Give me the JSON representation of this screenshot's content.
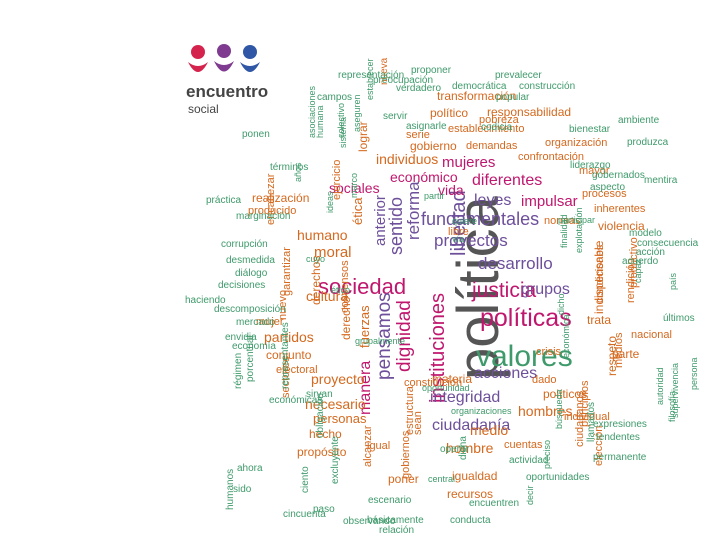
{
  "logo": {
    "name": "encuentro",
    "subtitle": "social",
    "colors": [
      "#d4244d",
      "#7e3b8f",
      "#2f57a6"
    ]
  },
  "palette": {
    "green": "#3f9a6b",
    "orange": "#d4691f",
    "purple": "#6d4f9a",
    "magenta": "#c0176e",
    "gray": "#555555"
  },
  "words": [
    {
      "t": "política",
      "c": "gray",
      "o": "v"
    },
    {
      "t": "valores",
      "c": "green",
      "o": "h"
    },
    {
      "t": "políticas",
      "c": "magenta",
      "o": "h"
    },
    {
      "t": "sociedad",
      "c": "magenta",
      "o": "h"
    },
    {
      "t": "justicia",
      "c": "magenta",
      "o": "h"
    },
    {
      "t": "fundamentales",
      "c": "purple",
      "o": "h"
    },
    {
      "t": "proyectos",
      "c": "purple",
      "o": "h"
    },
    {
      "t": "desarrollo",
      "c": "purple",
      "o": "h"
    },
    {
      "t": "instituciones",
      "c": "magenta",
      "o": "v"
    },
    {
      "t": "libertad",
      "c": "purple",
      "o": "v"
    },
    {
      "t": "dignidad",
      "c": "magenta",
      "o": "v"
    },
    {
      "t": "pensamos",
      "c": "purple",
      "o": "v"
    },
    {
      "t": "integridad",
      "c": "purple",
      "o": "h"
    },
    {
      "t": "acciones",
      "c": "purple",
      "o": "h"
    },
    {
      "t": "ciudadanía",
      "c": "purple",
      "o": "h"
    },
    {
      "t": "sentido",
      "c": "purple",
      "o": "v"
    },
    {
      "t": "reforma",
      "c": "purple",
      "o": "v"
    },
    {
      "t": "anterior",
      "c": "purple",
      "o": "v"
    },
    {
      "t": "manera",
      "c": "magenta",
      "o": "v"
    },
    {
      "t": "leyes",
      "c": "purple",
      "o": "h"
    },
    {
      "t": "grupos",
      "c": "purple",
      "o": "h"
    },
    {
      "t": "diferentes",
      "c": "magenta",
      "o": "h"
    },
    {
      "t": "mujeres",
      "c": "magenta",
      "o": "h"
    },
    {
      "t": "vida",
      "c": "magenta",
      "o": "h"
    },
    {
      "t": "económico",
      "c": "magenta",
      "o": "h"
    },
    {
      "t": "impulsar",
      "c": "magenta",
      "o": "h"
    },
    {
      "t": "sociales",
      "c": "magenta",
      "o": "h"
    },
    {
      "t": "moral",
      "c": "orange",
      "o": "h"
    },
    {
      "t": "humano",
      "c": "orange",
      "o": "h"
    },
    {
      "t": "cultura",
      "c": "orange",
      "o": "h"
    },
    {
      "t": "proyecto",
      "c": "orange",
      "o": "h"
    },
    {
      "t": "necesario",
      "c": "orange",
      "o": "h"
    },
    {
      "t": "personas",
      "c": "orange",
      "o": "h"
    },
    {
      "t": "partidos",
      "c": "orange",
      "o": "h"
    },
    {
      "t": "hombres",
      "c": "orange",
      "o": "h"
    },
    {
      "t": "hombre",
      "c": "orange",
      "o": "h"
    },
    {
      "t": "medio",
      "c": "orange",
      "o": "h"
    },
    {
      "t": "individuos",
      "c": "orange",
      "o": "h"
    },
    {
      "t": "realización",
      "c": "orange",
      "o": "h"
    },
    {
      "t": "fuerzas",
      "c": "orange",
      "o": "v"
    },
    {
      "t": "derecho",
      "c": "orange",
      "o": "v"
    },
    {
      "t": "derechos",
      "c": "orange",
      "o": "v"
    },
    {
      "t": "ética",
      "c": "orange",
      "o": "v"
    },
    {
      "t": "materia",
      "c": "orange",
      "o": "h"
    },
    {
      "t": "trata",
      "c": "orange",
      "o": "h"
    },
    {
      "t": "políticos",
      "c": "orange",
      "o": "h"
    },
    {
      "t": "respeto",
      "c": "orange",
      "o": "v"
    },
    {
      "t": "crisis",
      "c": "orange",
      "o": "h"
    },
    {
      "t": "dado",
      "c": "orange",
      "o": "h"
    },
    {
      "t": "individual",
      "c": "orange",
      "o": "h"
    },
    {
      "t": "propósito",
      "c": "orange",
      "o": "h"
    },
    {
      "t": "igualdad",
      "c": "orange",
      "o": "h"
    },
    {
      "t": "recursos",
      "c": "orange",
      "o": "h"
    },
    {
      "t": "poner",
      "c": "orange",
      "o": "h"
    },
    {
      "t": "hecho",
      "c": "orange",
      "o": "h"
    },
    {
      "t": "conjunto",
      "c": "orange",
      "o": "h"
    },
    {
      "t": "electoral",
      "c": "orange",
      "o": "h"
    },
    {
      "t": "gobierno",
      "c": "orange",
      "o": "h"
    },
    {
      "t": "demandas",
      "c": "orange",
      "o": "h"
    },
    {
      "t": "organización",
      "c": "orange",
      "o": "h"
    },
    {
      "t": "confrontación",
      "c": "orange",
      "o": "h"
    },
    {
      "t": "pobreza",
      "c": "orange",
      "o": "h"
    },
    {
      "t": "responsabilidad",
      "c": "orange",
      "o": "h"
    },
    {
      "t": "político",
      "c": "orange",
      "o": "h"
    },
    {
      "t": "transformación",
      "c": "orange",
      "o": "h"
    },
    {
      "t": "serie",
      "c": "orange",
      "o": "h"
    },
    {
      "t": "establecimiento",
      "c": "orange",
      "o": "h"
    },
    {
      "t": "mayor",
      "c": "orange",
      "o": "h"
    },
    {
      "t": "procesos",
      "c": "orange",
      "o": "h"
    },
    {
      "t": "violencia",
      "c": "orange",
      "o": "h"
    },
    {
      "t": "inherentes",
      "c": "orange",
      "o": "h"
    },
    {
      "t": "normas",
      "c": "orange",
      "o": "h"
    },
    {
      "t": "libre",
      "c": "orange",
      "o": "h"
    },
    {
      "t": "condiciones",
      "c": "orange",
      "o": "v"
    },
    {
      "t": "rendición",
      "c": "orange",
      "o": "v"
    },
    {
      "t": "indispensable",
      "c": "orange",
      "o": "v"
    },
    {
      "t": "productivo",
      "c": "orange",
      "o": "v"
    },
    {
      "t": "nacional",
      "c": "orange",
      "o": "h"
    },
    {
      "t": "parte",
      "c": "orange",
      "o": "h"
    },
    {
      "t": "mujer",
      "c": "orange",
      "o": "h"
    },
    {
      "t": "producido",
      "c": "orange",
      "o": "h"
    },
    {
      "t": "encabezar",
      "c": "orange",
      "o": "v"
    },
    {
      "t": "garantizar",
      "c": "orange",
      "o": "v"
    },
    {
      "t": "nuevo",
      "c": "orange",
      "o": "v"
    },
    {
      "t": "consensos",
      "c": "orange",
      "o": "v"
    },
    {
      "t": "lograr",
      "c": "orange",
      "o": "v"
    },
    {
      "t": "ejercicio",
      "c": "orange",
      "o": "v"
    },
    {
      "t": "estructura",
      "c": "orange",
      "o": "v"
    },
    {
      "t": "alcanzar",
      "c": "orange",
      "o": "v"
    },
    {
      "t": "gobiernos",
      "c": "orange",
      "o": "v"
    },
    {
      "t": "sean",
      "c": "orange",
      "o": "v"
    },
    {
      "t": "elección",
      "c": "orange",
      "o": "v"
    },
    {
      "t": "ciudadanos",
      "c": "orange",
      "o": "v"
    },
    {
      "t": "principios",
      "c": "orange",
      "o": "v"
    },
    {
      "t": "cuentas",
      "c": "orange",
      "o": "h"
    },
    {
      "t": "igual",
      "c": "orange",
      "o": "h"
    },
    {
      "t": "sectores",
      "c": "orange",
      "o": "v"
    },
    {
      "t": "constitución",
      "c": "orange",
      "o": "h"
    },
    {
      "t": "medios",
      "c": "orange",
      "o": "v"
    },
    {
      "t": "nueva",
      "c": "orange",
      "o": "v"
    },
    {
      "t": "democrática",
      "c": "green",
      "o": "h"
    },
    {
      "t": "construcción",
      "c": "green",
      "o": "h"
    },
    {
      "t": "popular",
      "c": "green",
      "o": "h"
    },
    {
      "t": "representación",
      "c": "green",
      "o": "h"
    },
    {
      "t": "proponer",
      "c": "green",
      "o": "h"
    },
    {
      "t": "prevalecer",
      "c": "green",
      "o": "h"
    },
    {
      "t": "preocupación",
      "c": "green",
      "o": "h"
    },
    {
      "t": "verdadero",
      "c": "green",
      "o": "h"
    },
    {
      "t": "campos",
      "c": "green",
      "o": "h"
    },
    {
      "t": "servir",
      "c": "green",
      "o": "h"
    },
    {
      "t": "asignarle",
      "c": "green",
      "o": "h"
    },
    {
      "t": "codicia",
      "c": "green",
      "o": "h"
    },
    {
      "t": "bienestar",
      "c": "green",
      "o": "h"
    },
    {
      "t": "ambiente",
      "c": "green",
      "o": "h"
    },
    {
      "t": "produzca",
      "c": "green",
      "o": "h"
    },
    {
      "t": "ponen",
      "c": "green",
      "o": "h"
    },
    {
      "t": "términos",
      "c": "green",
      "o": "h"
    },
    {
      "t": "liderazgo",
      "c": "green",
      "o": "h"
    },
    {
      "t": "gobernados",
      "c": "green",
      "o": "h"
    },
    {
      "t": "aspecto",
      "c": "green",
      "o": "h"
    },
    {
      "t": "mentira",
      "c": "green",
      "o": "h"
    },
    {
      "t": "práctica",
      "c": "green",
      "o": "h"
    },
    {
      "t": "marginación",
      "c": "green",
      "o": "h"
    },
    {
      "t": "corrupción",
      "c": "green",
      "o": "h"
    },
    {
      "t": "desmedida",
      "c": "green",
      "o": "h"
    },
    {
      "t": "diálogo",
      "c": "green",
      "o": "h"
    },
    {
      "t": "decisiones",
      "c": "green",
      "o": "h"
    },
    {
      "t": "haciendo",
      "c": "green",
      "o": "h"
    },
    {
      "t": "descomposición",
      "c": "green",
      "o": "h"
    },
    {
      "t": "mercado",
      "c": "green",
      "o": "h"
    },
    {
      "t": "envidia",
      "c": "green",
      "o": "h"
    },
    {
      "t": "economía",
      "c": "green",
      "o": "h"
    },
    {
      "t": "modelo",
      "c": "green",
      "o": "h"
    },
    {
      "t": "consecuencia",
      "c": "green",
      "o": "h"
    },
    {
      "t": "acción",
      "c": "green",
      "o": "h"
    },
    {
      "t": "acuerdo",
      "c": "green",
      "o": "h"
    },
    {
      "t": "últimos",
      "c": "green",
      "o": "h"
    },
    {
      "t": "partir",
      "c": "green",
      "o": "h"
    },
    {
      "t": "participar",
      "c": "green",
      "o": "h"
    },
    {
      "t": "quiere",
      "c": "green",
      "o": "h"
    },
    {
      "t": "vía",
      "c": "green",
      "o": "h"
    },
    {
      "t": "cuyo",
      "c": "green",
      "o": "h"
    },
    {
      "t": "ético",
      "c": "green",
      "o": "h"
    },
    {
      "t": "ideas",
      "c": "green",
      "o": "v"
    },
    {
      "t": "marco",
      "c": "green",
      "o": "v"
    },
    {
      "t": "años",
      "c": "green",
      "o": "v"
    },
    {
      "t": "asociaciones",
      "c": "green",
      "o": "v"
    },
    {
      "t": "humana",
      "c": "green",
      "o": "v"
    },
    {
      "t": "sistema",
      "c": "green",
      "o": "v"
    },
    {
      "t": "colectivo",
      "c": "green",
      "o": "v"
    },
    {
      "t": "aseguren",
      "c": "green",
      "o": "v"
    },
    {
      "t": "establecer",
      "c": "green",
      "o": "v"
    },
    {
      "t": "porcentual",
      "c": "green",
      "o": "v"
    },
    {
      "t": "régimen",
      "c": "green",
      "o": "v"
    },
    {
      "t": "humanos",
      "c": "green",
      "o": "v"
    },
    {
      "t": "representantes",
      "c": "green",
      "o": "v"
    },
    {
      "t": "económicas",
      "c": "green",
      "o": "h"
    },
    {
      "t": "sirvan",
      "c": "green",
      "o": "h"
    },
    {
      "t": "sido",
      "c": "green",
      "o": "h"
    },
    {
      "t": "ahora",
      "c": "green",
      "o": "h"
    },
    {
      "t": "cincuenta",
      "c": "green",
      "o": "h"
    },
    {
      "t": "obligación",
      "c": "green",
      "o": "v"
    },
    {
      "t": "excluyente",
      "c": "green",
      "o": "v"
    },
    {
      "t": "ciento",
      "c": "green",
      "o": "v"
    },
    {
      "t": "escenario",
      "c": "green",
      "o": "h"
    },
    {
      "t": "paso",
      "c": "green",
      "o": "h"
    },
    {
      "t": "observando",
      "c": "green",
      "o": "h"
    },
    {
      "t": "básicamente",
      "c": "green",
      "o": "h"
    },
    {
      "t": "conducta",
      "c": "green",
      "o": "h"
    },
    {
      "t": "relación",
      "c": "green",
      "o": "h"
    },
    {
      "t": "encuentren",
      "c": "green",
      "o": "h"
    },
    {
      "t": "oportunidades",
      "c": "green",
      "o": "h"
    },
    {
      "t": "permanente",
      "c": "green",
      "o": "h"
    },
    {
      "t": "tendentes",
      "c": "green",
      "o": "h"
    },
    {
      "t": "expresiones",
      "c": "green",
      "o": "h"
    },
    {
      "t": "operar",
      "c": "green",
      "o": "h"
    },
    {
      "t": "organizaciones",
      "c": "green",
      "o": "h"
    },
    {
      "t": "grupalmente",
      "c": "green",
      "o": "h"
    },
    {
      "t": "oportunidad",
      "c": "green",
      "o": "h"
    },
    {
      "t": "central",
      "c": "green",
      "o": "h"
    },
    {
      "t": "actividad",
      "c": "green",
      "o": "h"
    },
    {
      "t": "dicha",
      "c": "green",
      "o": "v"
    },
    {
      "t": "decir",
      "c": "green",
      "o": "v"
    },
    {
      "t": "preciso",
      "c": "green",
      "o": "v"
    },
    {
      "t": "búsqueda",
      "c": "green",
      "o": "v"
    },
    {
      "t": "económica",
      "c": "green",
      "o": "v"
    },
    {
      "t": "explotación",
      "c": "green",
      "o": "v"
    },
    {
      "t": "finalidad",
      "c": "green",
      "o": "v"
    },
    {
      "t": "dicho",
      "c": "green",
      "o": "v"
    },
    {
      "t": "llamados",
      "c": "green",
      "o": "v"
    },
    {
      "t": "capaz",
      "c": "green",
      "o": "v"
    },
    {
      "t": "país",
      "c": "green",
      "o": "v"
    },
    {
      "t": "autoridad",
      "c": "green",
      "o": "v"
    },
    {
      "t": "filosofía",
      "c": "green",
      "o": "v"
    },
    {
      "t": "supervivencia",
      "c": "green",
      "o": "v"
    },
    {
      "t": "persona",
      "c": "green",
      "o": "v"
    },
    {
      "t": "importante",
      "c": "green",
      "o": "v"
    },
    {
      "t": "representados",
      "c": "green",
      "o": "v"
    },
    {
      "t": "participación",
      "c": "green",
      "o": "v"
    },
    {
      "t": "reconocimiento",
      "c": "green",
      "o": "v"
    }
  ]
}
